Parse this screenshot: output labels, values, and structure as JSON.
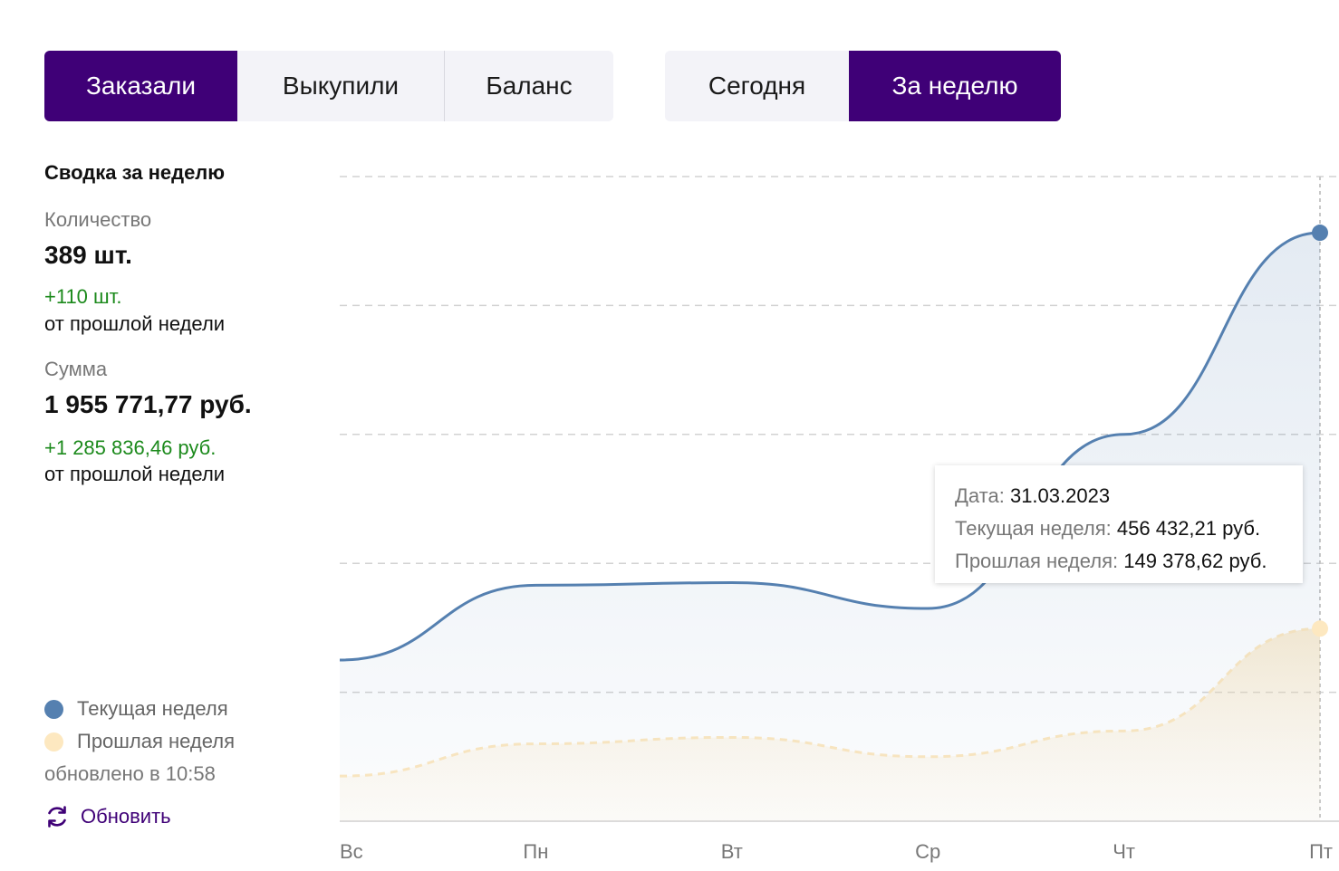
{
  "tabs": {
    "metric": [
      {
        "label": "Заказали",
        "active": true
      },
      {
        "label": "Выкупили",
        "active": false
      },
      {
        "label": "Баланс",
        "active": false
      }
    ],
    "period": [
      {
        "label": "Сегодня",
        "active": false
      },
      {
        "label": "За неделю",
        "active": true
      }
    ]
  },
  "summary": {
    "title": "Сводка за неделю",
    "quantity": {
      "label": "Количество",
      "value": "389 шт.",
      "delta": "+110 шт.",
      "delta_note": "от прошлой недели"
    },
    "sum": {
      "label": "Сумма",
      "value": "1 955 771,77 руб.",
      "delta": "+1 285 836,46 руб.",
      "delta_note": "от прошлой недели"
    }
  },
  "legend": {
    "current": {
      "label": "Текущая неделя",
      "color": "#5580b0"
    },
    "previous": {
      "label": "Прошлая неделя",
      "color": "#fde8c0"
    }
  },
  "updated": "обновлено в 10:58",
  "refresh_label": "Обновить",
  "tooltip": {
    "date_label": "Дата:",
    "date_value": "31.03.2023",
    "current_label": "Текущая неделя:",
    "current_value": "456 432,21 руб.",
    "previous_label": "Прошлая неделя:",
    "previous_value": "149 378,62 руб."
  },
  "chart_data": {
    "type": "area",
    "categories": [
      "Вс",
      "Пн",
      "Вт",
      "Ср",
      "Чт",
      "Пт"
    ],
    "ylim": [
      0,
      500000
    ],
    "grid": true,
    "series": [
      {
        "name": "Текущая неделя",
        "color": "#5580b0",
        "values": [
          125000,
          183000,
          185000,
          165000,
          300000,
          456432.21
        ]
      },
      {
        "name": "Прошлая неделя",
        "color": "#fde8c0",
        "values": [
          35000,
          60000,
          65000,
          50000,
          70000,
          149378.62
        ]
      }
    ],
    "highlight_index": 5
  }
}
